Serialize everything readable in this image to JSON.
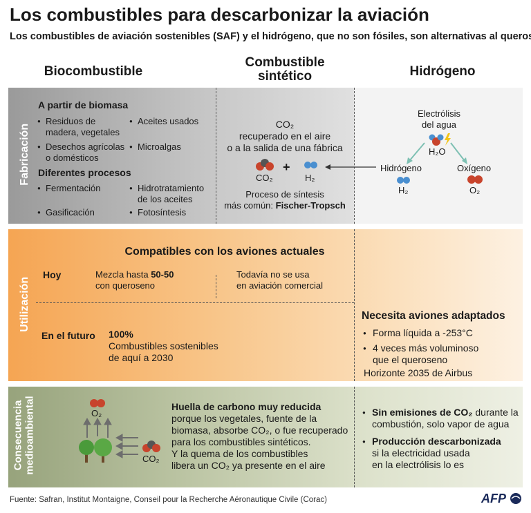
{
  "title": "Los combustibles para descarbonizar la aviación",
  "subtitle": "Los combustibles de aviación sostenibles (SAF) y el hidrógeno, que no son fósiles, son alternativas al queroseno",
  "columns": {
    "bio": "Biocombustible",
    "syn_line1": "Combustible",
    "syn_line2": "sintético",
    "hyd": "Hidrógeno"
  },
  "sections": {
    "fab": "Fabricación",
    "use": "Utilización",
    "env_line1": "Consecuencia",
    "env_line2": "medioambiental"
  },
  "fabricacion": {
    "bio": {
      "heading1": "A partir de biomasa",
      "items1": [
        "Residuos de madera, vegetales",
        "Aceites usados",
        "Desechos agrícolas o domésticos",
        "Microalgas"
      ],
      "heading2": "Diferentes procesos",
      "items2": [
        "Fermentación",
        "Hidrotratamiento de los aceites",
        "Gasificación",
        "Fotosíntesis"
      ]
    },
    "syn": {
      "co2_label": "CO₂",
      "source_line1": "recuperado en el aire",
      "source_line2": "o a la salida de una fábrica",
      "mol_co2": "CO₂",
      "plus": "+",
      "mol_h2": "H₂",
      "process_line1": "Proceso de síntesis",
      "process_line2_prefix": "más común: ",
      "process_line2_bold": "Fischer-Tropsch"
    },
    "hyd": {
      "electro_line1": "Electrólisis",
      "electro_line2": "del agua",
      "water": "H₂O",
      "hydrogen": "Hidrógeno",
      "h2": "H₂",
      "oxygen": "Oxígeno",
      "o2": "O₂"
    }
  },
  "utilizacion": {
    "compat": "Compatibles con los aviones actuales",
    "hoy": "Hoy",
    "mix_prefix": "Mezcla hasta ",
    "mix_bold": "50-50",
    "mix_line2": "con queroseno",
    "syn_today_line1": "Todavía no se usa",
    "syn_today_line2": "en aviación comercial",
    "future": "En el futuro",
    "future_pct": "100%",
    "future_line1": "Combustibles sostenibles",
    "future_line2": "de aquí a 2030",
    "needs": "Necesita aviones adaptados",
    "hyd_item1": "Forma líquida a -253°C",
    "hyd_item2_line1": "4 veces más voluminoso",
    "hyd_item2_line2": "que el queroseno",
    "horizon": "Horizonte 2035 de Airbus"
  },
  "consecuencia": {
    "o2": "O₂",
    "co2": "CO₂",
    "heading": "Huella de carbono muy reducida",
    "line1": "porque los vegetales, fuente de la",
    "line2": "biomasa, absorbe CO₂, o fue recuperado",
    "line3": "para los combustibles sintéticos.",
    "line4": "Y la quema de los combustibles",
    "line5": "libera un CO₂ ya presente en el aire",
    "hyd1_bold": "Sin emisiones de CO₂",
    "hyd1_rest": " durante la",
    "hyd1_line2": "combustión, solo vapor de agua",
    "hyd2_bold": "Producción descarbonizada",
    "hyd2_line2": "si la electricidad usada",
    "hyd2_line3": "en la electrólisis lo es"
  },
  "footer": "Fuente: Safran, Institut Montaigne, Conseil pour la Recherche Aéronautique Civile (Corac)",
  "logo": "AFP",
  "colors": {
    "fab": "#9a9a9a",
    "use": "#f5a553",
    "env": "#97a37c",
    "co2_red": "#c8442c",
    "h2_blue": "#4a8fd0",
    "arrow_teal": "#7ec0b3"
  }
}
